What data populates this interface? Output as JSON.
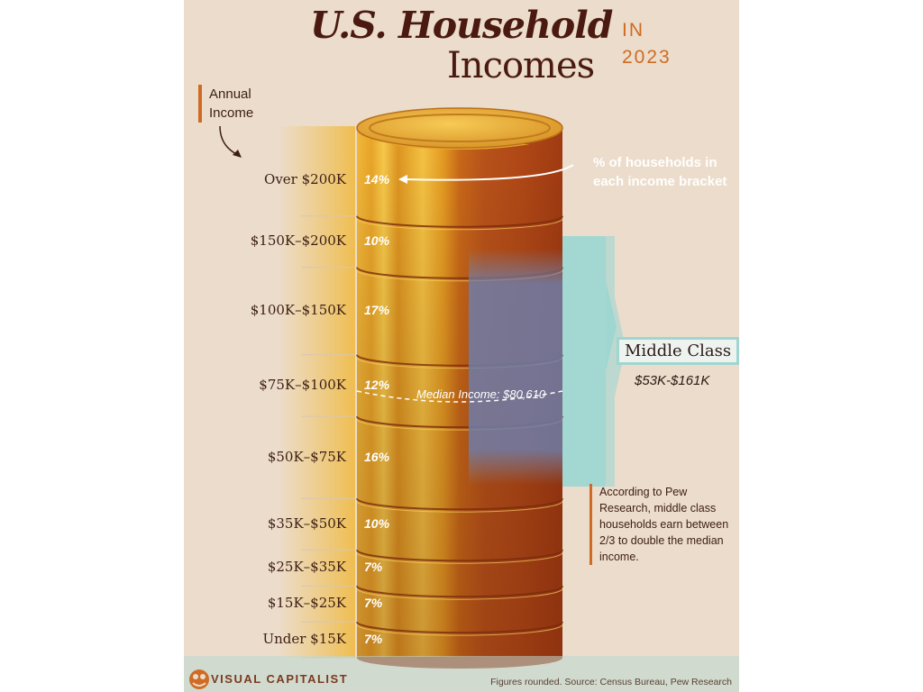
{
  "title": {
    "main": "U.S. Household",
    "sub": "Incomes",
    "in": "IN",
    "year": "2023"
  },
  "axis_label": "Annual Income",
  "chart_data": {
    "type": "bar",
    "title": "U.S. Household Incomes in 2023",
    "xlabel": "Annual Income",
    "ylabel": "% of households in each income bracket",
    "categories": [
      "Over $200K",
      "$150K–$200K",
      "$100K–$150K",
      "$75K–$100K",
      "$50K–$75K",
      "$35K–$50K",
      "$25K–$35K",
      "$15K–$25K",
      "Under $15K"
    ],
    "values": [
      14,
      10,
      17,
      12,
      16,
      10,
      7,
      7,
      7
    ],
    "value_labels": [
      "14%",
      "10%",
      "17%",
      "12%",
      "16%",
      "10%",
      "7%",
      "7%",
      "7%"
    ],
    "unit": "%"
  },
  "annotations": {
    "households_note": "% of households in each income bracket",
    "median": "Median Income: $80,610",
    "middle_class_title": "Middle Class",
    "middle_class_range": "$53K-$161K",
    "pew_note": "According to Pew Research, middle class households earn between 2/3 to double the median income."
  },
  "footer": {
    "logo": "VISUAL CAPITALIST",
    "source": "Figures rounded. Source: Census Bureau, Pew Research"
  },
  "colors": {
    "background": "#ecdccb",
    "coin_gold": "#e0a326",
    "coin_dark": "#b04a10",
    "middle_class": "#9fd6d2",
    "title": "#4a1a10",
    "accent": "#cf6b24"
  }
}
